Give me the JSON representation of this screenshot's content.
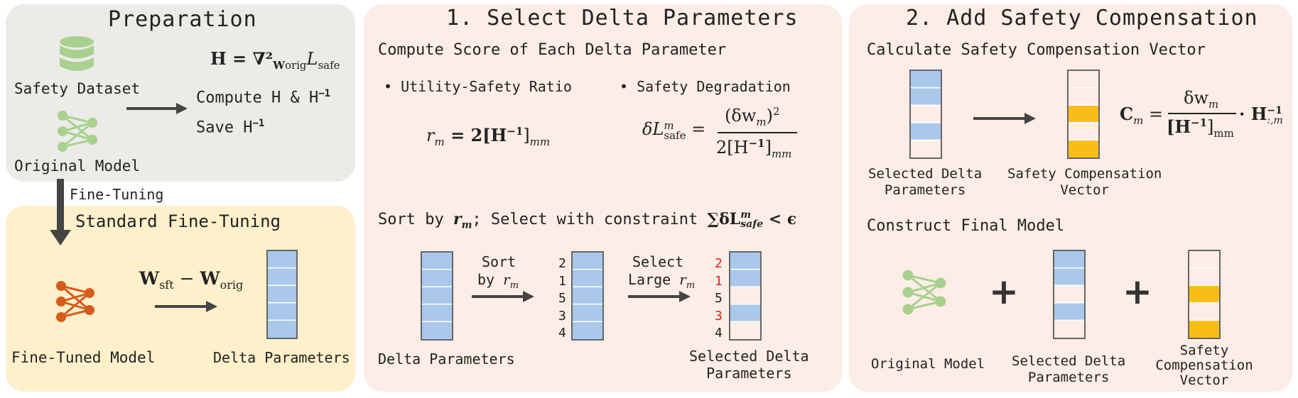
{
  "preparation": {
    "title": "Preparation",
    "safety_dataset_label": "Safety Dataset",
    "original_model_label": "Original Model",
    "hessian_def": "H = ∇²",
    "hessian_sub": "W",
    "hessian_subsub": "orig",
    "hessian_L": "L",
    "hessian_Lsub": "safe",
    "compute_step": "Compute H & H",
    "compute_sup": "−1",
    "save_step": "Save H",
    "save_sup": "−1"
  },
  "fine_tuning_arrow_label": "Fine-Tuning",
  "standard_ft": {
    "title": "Standard Fine-Tuning",
    "formula_w1": "W",
    "formula_w1_sub": "sft",
    "formula_minus": " − ",
    "formula_w2": "W",
    "formula_w2_sub": "orig",
    "fine_tuned_model_label": "Fine-Tuned Model",
    "delta_parameters_label": "Delta Parameters"
  },
  "select_delta": {
    "title": "1. Select Delta Parameters",
    "subtitle": "Compute Score of Each Delta Parameter",
    "bullet_ratio": "• Utility-Safety Ratio",
    "bullet_degradation": "• Safety Degradation",
    "ratio_formula_lhs": "r",
    "ratio_formula_lhs_sub": "m",
    "ratio_formula_rhs": " = 2[H",
    "ratio_formula_sup": "−1",
    "ratio_formula_end": "]",
    "ratio_formula_end_sub": "mm",
    "degr_lhs": "δL",
    "degr_lhs_sup": "m",
    "degr_lhs_sub": "safe",
    "degr_num": "(δw",
    "degr_num_sub": "m",
    "degr_num_end": ")",
    "degr_num_sup": "2",
    "degr_den": "2[H",
    "degr_den_sup": "−1",
    "degr_den_end": "]",
    "degr_den_sub": "mm",
    "sort_line_prefix": "Sort by ",
    "sort_line_r": "r",
    "sort_line_r_sub": "m",
    "sort_line_mid": "; Select with constraint ",
    "sort_line_sum": "∑δL",
    "sort_line_sum_sup": "m",
    "sort_line_sum_sub": "safe",
    "sort_line_lt": " < ϵ",
    "sort_arrow_label_1": "Sort",
    "sort_arrow_label_2": "by ",
    "sort_arrow_r": "r",
    "sort_arrow_r_sub": "m",
    "select_arrow_label_1": "Select",
    "select_arrow_label_2": "Large ",
    "select_arrow_r": "r",
    "select_arrow_r_sub": "m",
    "rank_sorted": [
      "2",
      "1",
      "5",
      "3",
      "4"
    ],
    "rank_selected": [
      "2",
      "1",
      "5",
      "3",
      "4"
    ],
    "delta_parameters_label": "Delta Parameters",
    "selected_delta_label_1": "Selected Delta",
    "selected_delta_label_2": "Parameters"
  },
  "safety_comp": {
    "title": "2. Add Safety Compensation",
    "subtitle": "Calculate Safety Compensation Vector",
    "selected_delta_label_1": "Selected Delta",
    "selected_delta_label_2": "Parameters",
    "vector_label_1": "Safety Compensation",
    "vector_label_2": "Vector",
    "formula_lhs": "C",
    "formula_lhs_sub": "m",
    "formula_eq": " = ",
    "formula_num": "δw",
    "formula_num_sub": "m",
    "formula_den": "[H",
    "formula_den_sup": "−1",
    "formula_den_end": "]",
    "formula_den_sub": "mm",
    "formula_dot": " · H",
    "formula_dot_sup": "−1",
    "formula_dot_sub": ":,m",
    "construct_title": "Construct Final Model",
    "plus_1": "+",
    "plus_2": "+",
    "original_model_label": "Original Model",
    "final_selected_label_1": "Selected Delta",
    "final_selected_label_2": "Parameters",
    "final_vector_label_1": "Safety",
    "final_vector_label_2": "Compensation",
    "final_vector_label_3": "Vector"
  },
  "colors": {
    "prep_bg": "#ecebe8",
    "ft_bg": "#fdf0cb",
    "pink_bg": "#fcede6",
    "blue_cell": "#a9c8ea",
    "yellow_cell": "#f9bd17",
    "green_net": "#a8d18f",
    "orange_net": "#d55c1a",
    "red_rank": "#e02020"
  }
}
